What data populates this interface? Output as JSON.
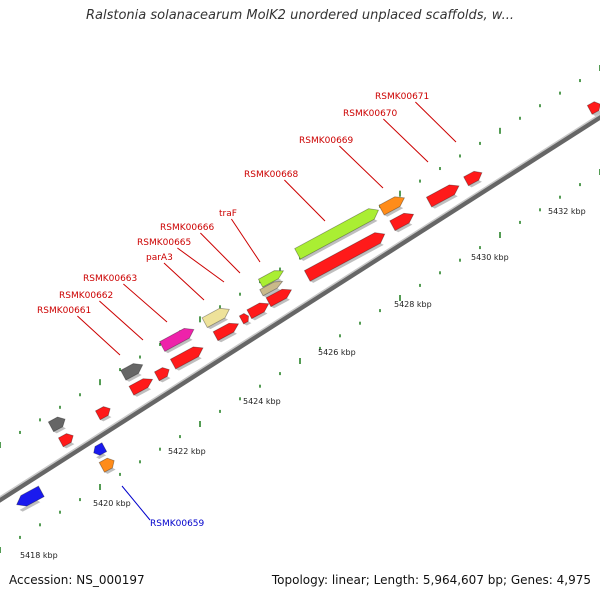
{
  "title": "Ralstonia solanacearum MolK2 unordered unplaced scaffolds, w...",
  "footer": {
    "accession": "Accession: NS_000197",
    "summary": "Topology: linear; Length: 5,964,607 bp; Genes: 4,975"
  },
  "scale_labels": [
    "5418 kbp",
    "5420 kbp",
    "5422 kbp",
    "5424 kbp",
    "5426 kbp",
    "5428 kbp",
    "5430 kbp",
    "5432 kbp"
  ],
  "gene_labels": [
    "RSMK00659",
    "RSMK00661",
    "RSMK00662",
    "RSMK00663",
    "parA3",
    "RSMK00665",
    "RSMK00666",
    "traF",
    "RSMK00668",
    "RSMK00669",
    "RSMK00670",
    "RSMK00671"
  ],
  "colors": {
    "label_red": "#cc0000",
    "label_blue": "#0000cc",
    "gene_red": "#ff1a1a",
    "gene_blue": "#1a1aee",
    "gene_orange": "#ff8c1a",
    "gene_gray": "#666666",
    "gene_pink": "#ee22aa",
    "gene_yellow": "#eee29a",
    "gene_green": "#aaee33",
    "gene_tan": "#c9b98a",
    "tick_green": "#1a7a1a"
  }
}
